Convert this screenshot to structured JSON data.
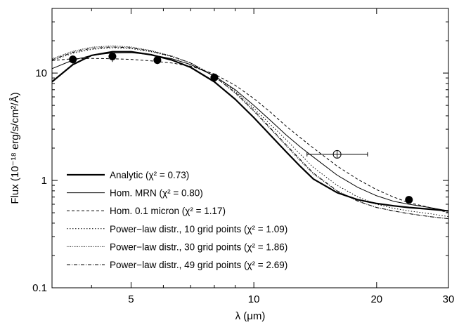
{
  "chart_data": {
    "type": "line",
    "title": "",
    "xlabel": "λ (μm)",
    "ylabel": "Flux (10⁻¹⁸ erg/s/cm²/Å)",
    "xscale": "log",
    "yscale": "log",
    "xlim": [
      3.2,
      30
    ],
    "ylim": [
      0.1,
      40
    ],
    "grid": false,
    "legend_position": "bottom-left",
    "x_ticks": [
      {
        "value": 5,
        "label": "5"
      },
      {
        "value": 10,
        "label": "10"
      },
      {
        "value": 20,
        "label": "20"
      },
      {
        "value": 30,
        "label": "30"
      }
    ],
    "y_ticks": [
      {
        "value": 0.1,
        "label": "0.1"
      },
      {
        "value": 1,
        "label": "1"
      },
      {
        "value": 10,
        "label": "10"
      }
    ],
    "series": [
      {
        "name": "Analytic (χ² = 0.73)",
        "style": "solid-thick",
        "x": [
          3.2,
          3.6,
          4.0,
          4.5,
          5.0,
          5.6,
          6.3,
          7.0,
          8.0,
          9.0,
          10.0,
          11.0,
          12.0,
          13.0,
          14.0,
          16.0,
          18.0,
          20.0,
          22.0,
          24.0,
          27.0,
          30.0
        ],
        "y": [
          8.3,
          12.0,
          14.6,
          15.8,
          15.8,
          14.8,
          13.2,
          11.3,
          8.3,
          5.7,
          3.85,
          2.62,
          1.85,
          1.35,
          1.03,
          0.77,
          0.66,
          0.61,
          0.58,
          0.56,
          0.54,
          0.52
        ]
      },
      {
        "name": "Hom. MRN (χ² = 0.80)",
        "style": "solid-thin",
        "x": [
          3.2,
          3.6,
          4.0,
          4.5,
          5.0,
          5.6,
          6.3,
          7.0,
          8.0,
          9.0,
          10.0,
          11.0,
          12.0,
          13.0,
          14.0,
          16.0,
          18.0,
          20.0,
          22.0,
          24.0,
          27.0,
          30.0
        ],
        "y": [
          11.0,
          13.2,
          14.6,
          15.4,
          15.5,
          14.8,
          13.6,
          12.0,
          9.4,
          7.0,
          5.0,
          3.6,
          2.65,
          2.05,
          1.65,
          1.12,
          0.86,
          0.72,
          0.64,
          0.6,
          0.56,
          0.52
        ]
      },
      {
        "name": "Hom. 0.1 micron (χ² = 1.17)",
        "style": "dashed",
        "x": [
          3.2,
          3.6,
          4.0,
          4.5,
          5.0,
          5.6,
          6.3,
          7.0,
          8.0,
          9.0,
          10.0,
          11.0,
          12.0,
          13.0,
          14.0,
          16.0,
          18.0,
          20.0,
          22.0,
          24.0,
          27.0,
          30.0
        ],
        "y": [
          13.1,
          13.6,
          13.7,
          13.6,
          13.4,
          13.0,
          12.4,
          11.6,
          9.8,
          7.7,
          5.8,
          4.3,
          3.2,
          2.5,
          2.0,
          1.36,
          1.02,
          0.82,
          0.7,
          0.62,
          0.56,
          0.5
        ]
      },
      {
        "name": "Power−law distr., 10 grid points (χ² = 1.09)",
        "style": "dotted",
        "x": [
          3.2,
          3.6,
          4.0,
          4.5,
          5.0,
          5.6,
          6.3,
          7.0,
          8.0,
          9.0,
          10.0,
          11.0,
          12.0,
          13.0,
          14.0,
          16.0,
          18.0,
          20.0,
          22.0,
          24.0,
          27.0,
          30.0
        ],
        "y": [
          13.0,
          15.3,
          16.6,
          17.2,
          16.9,
          15.8,
          14.2,
          12.4,
          9.5,
          6.8,
          4.7,
          3.3,
          2.4,
          1.75,
          1.32,
          0.9,
          0.7,
          0.6,
          0.55,
          0.52,
          0.49,
          0.46
        ]
      },
      {
        "name": "Power−law distr., 30 grid points (χ² = 1.86)",
        "style": "densely-dotted",
        "x": [
          3.2,
          3.6,
          4.0,
          4.5,
          5.0,
          5.6,
          6.3,
          7.0,
          8.0,
          9.0,
          10.0,
          11.0,
          12.0,
          13.0,
          14.0,
          16.0,
          18.0,
          20.0,
          22.0,
          24.0,
          27.0,
          30.0
        ],
        "y": [
          13.6,
          16.0,
          17.4,
          17.9,
          17.5,
          16.2,
          14.4,
          12.4,
          9.3,
          6.5,
          4.4,
          3.0,
          2.1,
          1.52,
          1.15,
          0.8,
          0.64,
          0.56,
          0.52,
          0.49,
          0.46,
          0.44
        ]
      },
      {
        "name": "Power−law distr., 49 grid points (χ² = 2.69)",
        "style": "dash-dot",
        "x": [
          3.2,
          3.6,
          4.0,
          4.5,
          5.0,
          5.6,
          6.3,
          7.0,
          8.0,
          9.0,
          10.0,
          11.0,
          12.0,
          13.0,
          14.0,
          16.0,
          18.0,
          20.0,
          22.0,
          24.0,
          27.0,
          30.0
        ],
        "y": [
          13.3,
          15.6,
          17.0,
          17.5,
          17.2,
          16.0,
          14.3,
          12.4,
          9.3,
          6.6,
          4.5,
          3.05,
          2.15,
          1.56,
          1.17,
          0.8,
          0.64,
          0.56,
          0.52,
          0.49,
          0.46,
          0.44
        ]
      }
    ],
    "observations": [
      {
        "x": 3.6,
        "y": 13.4,
        "yerr": 1.2,
        "marker": "filled-circle"
      },
      {
        "x": 4.5,
        "y": 14.3,
        "yerr": 1.6,
        "marker": "filled-circle"
      },
      {
        "x": 5.8,
        "y": 13.2,
        "yerr": 1.1,
        "marker": "filled-circle"
      },
      {
        "x": 8.0,
        "y": 9.1,
        "yerr": 0.8,
        "marker": "filled-circle"
      },
      {
        "x": 24.0,
        "y": 0.66,
        "yerr": 0.05,
        "marker": "filled-circle"
      },
      {
        "x": 16.0,
        "y": 1.75,
        "xerr": [
          13.5,
          19.0
        ],
        "marker": "open-circle-cross"
      }
    ]
  }
}
